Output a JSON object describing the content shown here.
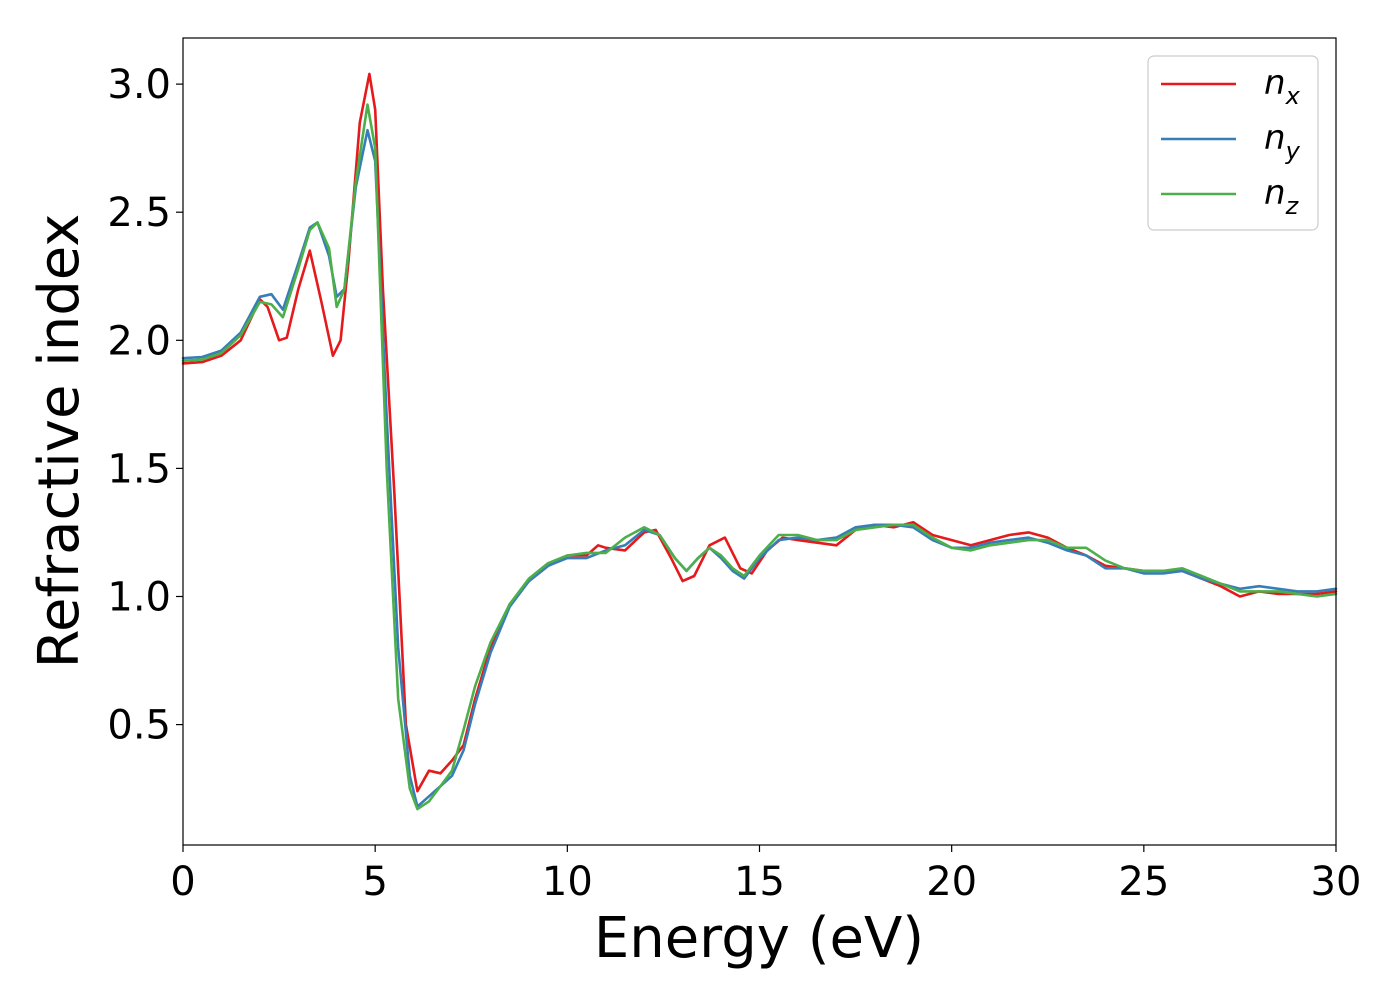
{
  "chart_data": {
    "type": "line",
    "xlabel": "Energy (eV)",
    "ylabel": "Refractive index",
    "xlim": [
      0,
      30
    ],
    "ylim": [
      0.03,
      3.18
    ],
    "xticks": [
      0,
      5,
      10,
      15,
      20,
      25,
      30
    ],
    "xtick_labels": [
      "0",
      "5",
      "10",
      "15",
      "20",
      "25",
      "30"
    ],
    "yticks": [
      0.5,
      1.0,
      1.5,
      2.0,
      2.5,
      3.0
    ],
    "ytick_labels": [
      "0.5",
      "1.0",
      "1.5",
      "2.0",
      "2.5",
      "3.0"
    ],
    "grid": false,
    "legend_position": "top-right",
    "series": [
      {
        "name": "n_x",
        "label_base": "n",
        "label_sub": "x",
        "color": "#e41a1c",
        "points": [
          [
            0,
            1.91
          ],
          [
            0.5,
            1.915
          ],
          [
            1.0,
            1.94
          ],
          [
            1.5,
            2.0
          ],
          [
            2.0,
            2.16
          ],
          [
            2.2,
            2.13
          ],
          [
            2.5,
            2.0
          ],
          [
            2.7,
            2.01
          ],
          [
            3.0,
            2.2
          ],
          [
            3.3,
            2.35
          ],
          [
            3.6,
            2.15
          ],
          [
            3.9,
            1.94
          ],
          [
            4.1,
            2.0
          ],
          [
            4.3,
            2.3
          ],
          [
            4.6,
            2.85
          ],
          [
            4.85,
            3.04
          ],
          [
            5.0,
            2.9
          ],
          [
            5.2,
            2.2
          ],
          [
            5.5,
            1.4
          ],
          [
            5.8,
            0.5
          ],
          [
            6.1,
            0.24
          ],
          [
            6.4,
            0.32
          ],
          [
            6.7,
            0.31
          ],
          [
            7.0,
            0.36
          ],
          [
            7.3,
            0.42
          ],
          [
            7.6,
            0.6
          ],
          [
            8.0,
            0.8
          ],
          [
            8.5,
            0.97
          ],
          [
            9.0,
            1.06
          ],
          [
            9.5,
            1.12
          ],
          [
            10.0,
            1.16
          ],
          [
            10.5,
            1.16
          ],
          [
            10.8,
            1.2
          ],
          [
            11.0,
            1.19
          ],
          [
            11.5,
            1.18
          ],
          [
            12.0,
            1.25
          ],
          [
            12.3,
            1.26
          ],
          [
            12.7,
            1.15
          ],
          [
            13.0,
            1.06
          ],
          [
            13.3,
            1.08
          ],
          [
            13.7,
            1.2
          ],
          [
            14.1,
            1.23
          ],
          [
            14.5,
            1.11
          ],
          [
            14.8,
            1.09
          ],
          [
            15.2,
            1.18
          ],
          [
            15.6,
            1.23
          ],
          [
            16.0,
            1.22
          ],
          [
            16.5,
            1.21
          ],
          [
            17.0,
            1.2
          ],
          [
            17.5,
            1.26
          ],
          [
            18.0,
            1.28
          ],
          [
            18.5,
            1.27
          ],
          [
            19.0,
            1.29
          ],
          [
            19.5,
            1.24
          ],
          [
            20.0,
            1.22
          ],
          [
            20.5,
            1.2
          ],
          [
            21.0,
            1.22
          ],
          [
            21.5,
            1.24
          ],
          [
            22.0,
            1.25
          ],
          [
            22.5,
            1.23
          ],
          [
            23.0,
            1.19
          ],
          [
            23.5,
            1.16
          ],
          [
            24.0,
            1.12
          ],
          [
            24.5,
            1.11
          ],
          [
            25.0,
            1.1
          ],
          [
            25.5,
            1.1
          ],
          [
            26.0,
            1.1
          ],
          [
            26.5,
            1.07
          ],
          [
            27.0,
            1.04
          ],
          [
            27.5,
            1.0
          ],
          [
            28.0,
            1.02
          ],
          [
            28.5,
            1.01
          ],
          [
            29.0,
            1.01
          ],
          [
            29.5,
            1.01
          ],
          [
            30.0,
            1.02
          ]
        ]
      },
      {
        "name": "n_y",
        "label_base": "n",
        "label_sub": "y",
        "color": "#377eb8",
        "points": [
          [
            0,
            1.93
          ],
          [
            0.5,
            1.935
          ],
          [
            1.0,
            1.96
          ],
          [
            1.5,
            2.03
          ],
          [
            2.0,
            2.17
          ],
          [
            2.3,
            2.18
          ],
          [
            2.6,
            2.12
          ],
          [
            3.0,
            2.3
          ],
          [
            3.3,
            2.44
          ],
          [
            3.5,
            2.46
          ],
          [
            3.8,
            2.33
          ],
          [
            4.0,
            2.17
          ],
          [
            4.2,
            2.2
          ],
          [
            4.5,
            2.6
          ],
          [
            4.8,
            2.82
          ],
          [
            5.0,
            2.7
          ],
          [
            5.3,
            1.7
          ],
          [
            5.6,
            0.8
          ],
          [
            5.9,
            0.3
          ],
          [
            6.1,
            0.18
          ],
          [
            6.4,
            0.22
          ],
          [
            6.7,
            0.26
          ],
          [
            7.0,
            0.3
          ],
          [
            7.3,
            0.4
          ],
          [
            7.6,
            0.58
          ],
          [
            8.0,
            0.78
          ],
          [
            8.5,
            0.96
          ],
          [
            9.0,
            1.06
          ],
          [
            9.5,
            1.12
          ],
          [
            10.0,
            1.15
          ],
          [
            10.5,
            1.15
          ],
          [
            11.0,
            1.18
          ],
          [
            11.5,
            1.2
          ],
          [
            12.0,
            1.26
          ],
          [
            12.4,
            1.24
          ],
          [
            12.8,
            1.15
          ],
          [
            13.1,
            1.1
          ],
          [
            13.4,
            1.15
          ],
          [
            13.7,
            1.19
          ],
          [
            14.0,
            1.15
          ],
          [
            14.3,
            1.1
          ],
          [
            14.6,
            1.07
          ],
          [
            15.0,
            1.15
          ],
          [
            15.5,
            1.22
          ],
          [
            16.0,
            1.23
          ],
          [
            16.5,
            1.22
          ],
          [
            17.0,
            1.23
          ],
          [
            17.5,
            1.27
          ],
          [
            18.0,
            1.28
          ],
          [
            18.5,
            1.28
          ],
          [
            19.0,
            1.27
          ],
          [
            19.5,
            1.22
          ],
          [
            20.0,
            1.19
          ],
          [
            20.5,
            1.19
          ],
          [
            21.0,
            1.21
          ],
          [
            21.5,
            1.22
          ],
          [
            22.0,
            1.23
          ],
          [
            22.5,
            1.21
          ],
          [
            23.0,
            1.18
          ],
          [
            23.5,
            1.16
          ],
          [
            24.0,
            1.11
          ],
          [
            24.5,
            1.11
          ],
          [
            25.0,
            1.09
          ],
          [
            25.5,
            1.09
          ],
          [
            26.0,
            1.1
          ],
          [
            26.5,
            1.07
          ],
          [
            27.0,
            1.05
          ],
          [
            27.5,
            1.03
          ],
          [
            28.0,
            1.04
          ],
          [
            28.5,
            1.03
          ],
          [
            29.0,
            1.02
          ],
          [
            29.5,
            1.02
          ],
          [
            30.0,
            1.03
          ]
        ]
      },
      {
        "name": "n_z",
        "label_base": "n",
        "label_sub": "z",
        "color": "#4daf4a",
        "points": [
          [
            0,
            1.92
          ],
          [
            0.5,
            1.925
          ],
          [
            1.0,
            1.95
          ],
          [
            1.5,
            2.02
          ],
          [
            2.0,
            2.15
          ],
          [
            2.3,
            2.14
          ],
          [
            2.6,
            2.09
          ],
          [
            3.0,
            2.28
          ],
          [
            3.3,
            2.43
          ],
          [
            3.5,
            2.46
          ],
          [
            3.8,
            2.36
          ],
          [
            4.0,
            2.13
          ],
          [
            4.2,
            2.2
          ],
          [
            4.5,
            2.62
          ],
          [
            4.8,
            2.92
          ],
          [
            5.0,
            2.75
          ],
          [
            5.3,
            1.5
          ],
          [
            5.6,
            0.6
          ],
          [
            5.9,
            0.25
          ],
          [
            6.1,
            0.17
          ],
          [
            6.4,
            0.2
          ],
          [
            6.7,
            0.26
          ],
          [
            7.0,
            0.32
          ],
          [
            7.3,
            0.48
          ],
          [
            7.6,
            0.65
          ],
          [
            8.0,
            0.82
          ],
          [
            8.5,
            0.97
          ],
          [
            9.0,
            1.07
          ],
          [
            9.5,
            1.13
          ],
          [
            10.0,
            1.16
          ],
          [
            10.5,
            1.17
          ],
          [
            11.0,
            1.17
          ],
          [
            11.5,
            1.23
          ],
          [
            12.0,
            1.27
          ],
          [
            12.4,
            1.24
          ],
          [
            12.8,
            1.15
          ],
          [
            13.1,
            1.1
          ],
          [
            13.4,
            1.15
          ],
          [
            13.7,
            1.19
          ],
          [
            14.0,
            1.16
          ],
          [
            14.3,
            1.11
          ],
          [
            14.6,
            1.08
          ],
          [
            15.0,
            1.16
          ],
          [
            15.5,
            1.24
          ],
          [
            16.0,
            1.24
          ],
          [
            16.5,
            1.22
          ],
          [
            17.0,
            1.22
          ],
          [
            17.5,
            1.26
          ],
          [
            18.0,
            1.27
          ],
          [
            18.5,
            1.28
          ],
          [
            19.0,
            1.28
          ],
          [
            19.5,
            1.23
          ],
          [
            20.0,
            1.19
          ],
          [
            20.5,
            1.18
          ],
          [
            21.0,
            1.2
          ],
          [
            21.5,
            1.21
          ],
          [
            22.0,
            1.22
          ],
          [
            22.5,
            1.22
          ],
          [
            23.0,
            1.19
          ],
          [
            23.5,
            1.19
          ],
          [
            24.0,
            1.14
          ],
          [
            24.5,
            1.11
          ],
          [
            25.0,
            1.1
          ],
          [
            25.5,
            1.1
          ],
          [
            26.0,
            1.11
          ],
          [
            26.5,
            1.08
          ],
          [
            27.0,
            1.05
          ],
          [
            27.5,
            1.02
          ],
          [
            28.0,
            1.02
          ],
          [
            28.5,
            1.02
          ],
          [
            29.0,
            1.01
          ],
          [
            29.5,
            1.0
          ],
          [
            30.0,
            1.01
          ]
        ]
      }
    ]
  }
}
